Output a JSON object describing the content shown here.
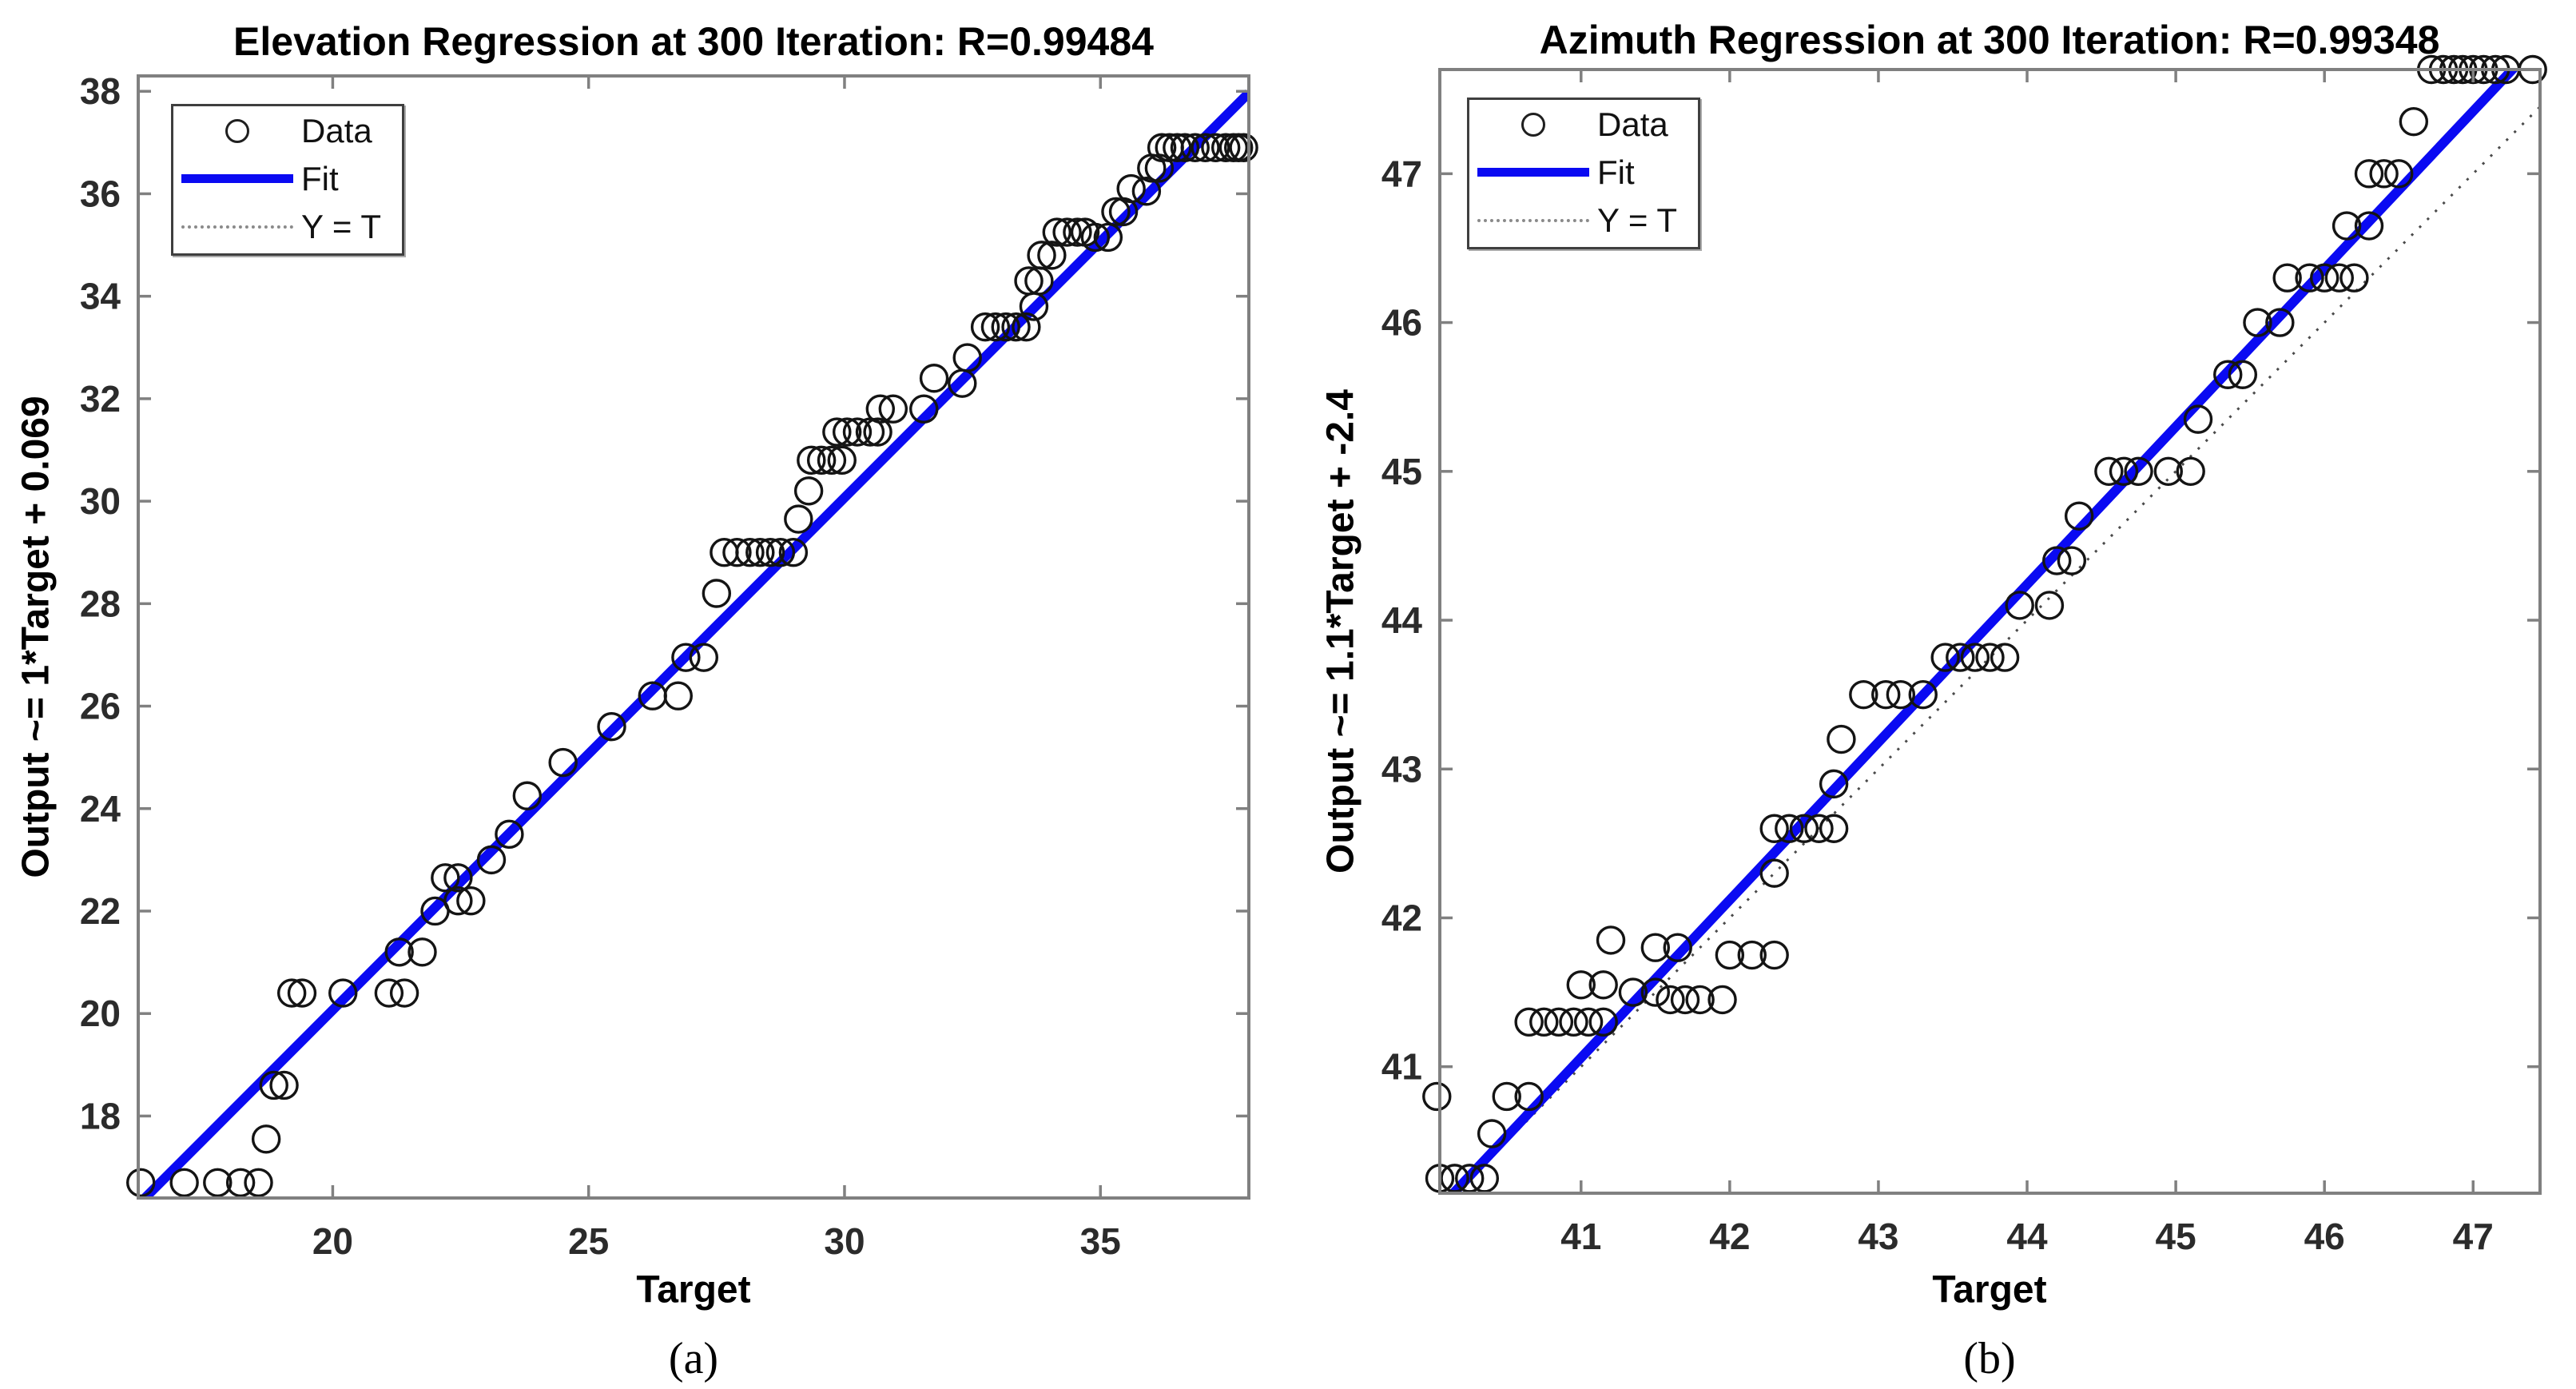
{
  "figure": {
    "background": "#ffffff"
  },
  "style": {
    "fit_color": "#0a0af2",
    "marker_color": "#141414",
    "axis_color": "#808080",
    "identity_color": "#4a4a4a",
    "tick_label_color": "#2b2b2b"
  },
  "chart_data": [
    {
      "type": "scatter",
      "title": "Elevation Regression at 300 Iteration: R=0.99484",
      "xlabel": "Target",
      "ylabel": "Output ~= 1*Target + 0.069",
      "caption": "(a)",
      "r_label": "R=0.99484",
      "xlim": [
        16.2,
        37.9
      ],
      "ylim": [
        16.4,
        38.3
      ],
      "xticks": [
        20,
        25,
        30,
        35
      ],
      "yticks": [
        18,
        20,
        22,
        24,
        26,
        28,
        30,
        32,
        34,
        36,
        38
      ],
      "grid": false,
      "legend": [
        "Data",
        "Fit",
        "Y = T"
      ],
      "legend_position": "top-left",
      "fit": {
        "slope": 1.0,
        "intercept": 0.069
      },
      "identity": {
        "label": "Y = T"
      },
      "points": [
        [
          16.25,
          16.7
        ],
        [
          17.1,
          16.7
        ],
        [
          17.75,
          16.7
        ],
        [
          18.2,
          16.7
        ],
        [
          18.55,
          16.7
        ],
        [
          18.7,
          17.55
        ],
        [
          18.85,
          18.6
        ],
        [
          19.05,
          18.6
        ],
        [
          19.2,
          20.4
        ],
        [
          19.4,
          20.4
        ],
        [
          20.2,
          20.4
        ],
        [
          21.1,
          20.4
        ],
        [
          21.4,
          20.4
        ],
        [
          21.3,
          21.2
        ],
        [
          21.75,
          21.2
        ],
        [
          22.0,
          22.0
        ],
        [
          22.2,
          22.65
        ],
        [
          22.45,
          22.65
        ],
        [
          22.45,
          22.2
        ],
        [
          22.7,
          22.2
        ],
        [
          23.1,
          23.0
        ],
        [
          23.45,
          23.5
        ],
        [
          23.8,
          24.25
        ],
        [
          24.5,
          24.9
        ],
        [
          25.45,
          25.6
        ],
        [
          26.25,
          26.2
        ],
        [
          26.75,
          26.2
        ],
        [
          26.9,
          26.95
        ],
        [
          27.25,
          26.95
        ],
        [
          27.5,
          28.2
        ],
        [
          27.65,
          29.0
        ],
        [
          27.9,
          29.0
        ],
        [
          28.15,
          29.0
        ],
        [
          28.35,
          29.0
        ],
        [
          28.55,
          29.0
        ],
        [
          28.75,
          29.0
        ],
        [
          29.0,
          29.0
        ],
        [
          29.1,
          29.65
        ],
        [
          29.3,
          30.2
        ],
        [
          29.35,
          30.8
        ],
        [
          29.55,
          30.8
        ],
        [
          29.75,
          30.8
        ],
        [
          29.95,
          30.8
        ],
        [
          29.85,
          31.35
        ],
        [
          30.05,
          31.35
        ],
        [
          30.25,
          31.35
        ],
        [
          30.5,
          31.35
        ],
        [
          30.65,
          31.35
        ],
        [
          30.7,
          31.8
        ],
        [
          30.95,
          31.8
        ],
        [
          31.55,
          31.8
        ],
        [
          31.75,
          32.4
        ],
        [
          32.3,
          32.3
        ],
        [
          32.4,
          32.8
        ],
        [
          32.75,
          33.4
        ],
        [
          32.95,
          33.4
        ],
        [
          33.15,
          33.4
        ],
        [
          33.35,
          33.4
        ],
        [
          33.55,
          33.4
        ],
        [
          33.7,
          33.8
        ],
        [
          33.6,
          34.3
        ],
        [
          33.8,
          34.3
        ],
        [
          33.85,
          34.8
        ],
        [
          34.05,
          34.8
        ],
        [
          34.15,
          35.25
        ],
        [
          34.35,
          35.25
        ],
        [
          34.55,
          35.25
        ],
        [
          34.7,
          35.25
        ],
        [
          34.9,
          35.15
        ],
        [
          35.15,
          35.15
        ],
        [
          35.3,
          35.65
        ],
        [
          35.45,
          35.65
        ],
        [
          35.6,
          36.1
        ],
        [
          35.9,
          36.05
        ],
        [
          36.0,
          36.5
        ],
        [
          36.15,
          36.5
        ],
        [
          36.2,
          36.9
        ],
        [
          36.35,
          36.9
        ],
        [
          36.5,
          36.9
        ],
        [
          36.65,
          36.9
        ],
        [
          36.85,
          36.9
        ],
        [
          37.05,
          36.9
        ],
        [
          37.25,
          36.9
        ],
        [
          37.45,
          36.9
        ],
        [
          37.6,
          36.9
        ],
        [
          37.7,
          36.9
        ],
        [
          37.8,
          36.9
        ]
      ]
    },
    {
      "type": "scatter",
      "title": "Azimuth Regression at 300 Iteration: R=0.99348",
      "xlabel": "Target",
      "ylabel": "Output ~= 1.1*Target + -2.4",
      "caption": "(b)",
      "r_label": "R=0.99348",
      "xlim": [
        40.05,
        47.45
      ],
      "ylim": [
        40.15,
        47.7
      ],
      "xticks": [
        41,
        42,
        43,
        44,
        45,
        46,
        47
      ],
      "yticks": [
        41,
        42,
        43,
        44,
        45,
        46,
        47
      ],
      "grid": false,
      "legend": [
        "Data",
        "Fit",
        "Y = T"
      ],
      "legend_position": "top-left",
      "fit": {
        "slope": 1.06,
        "intercept": -2.4
      },
      "identity": {
        "label": "Y = T"
      },
      "points": [
        [
          40.03,
          40.8
        ],
        [
          40.05,
          40.25
        ],
        [
          40.15,
          40.25
        ],
        [
          40.25,
          40.25
        ],
        [
          40.35,
          40.25
        ],
        [
          40.4,
          40.55
        ],
        [
          40.5,
          40.8
        ],
        [
          40.65,
          40.8
        ],
        [
          40.65,
          41.3
        ],
        [
          40.75,
          41.3
        ],
        [
          40.85,
          41.3
        ],
        [
          40.95,
          41.3
        ],
        [
          41.05,
          41.3
        ],
        [
          41.15,
          41.3
        ],
        [
          41.0,
          41.55
        ],
        [
          41.15,
          41.55
        ],
        [
          41.2,
          41.85
        ],
        [
          41.5,
          41.8
        ],
        [
          41.65,
          41.8
        ],
        [
          41.35,
          41.5
        ],
        [
          41.5,
          41.5
        ],
        [
          41.6,
          41.45
        ],
        [
          41.7,
          41.45
        ],
        [
          41.8,
          41.45
        ],
        [
          41.95,
          41.45
        ],
        [
          42.0,
          41.75
        ],
        [
          42.15,
          41.75
        ],
        [
          42.3,
          41.75
        ],
        [
          42.3,
          42.3
        ],
        [
          42.3,
          42.6
        ],
        [
          42.4,
          42.6
        ],
        [
          42.5,
          42.6
        ],
        [
          42.6,
          42.6
        ],
        [
          42.7,
          42.6
        ],
        [
          42.7,
          42.9
        ],
        [
          42.75,
          43.2
        ],
        [
          42.9,
          43.5
        ],
        [
          43.05,
          43.5
        ],
        [
          43.15,
          43.5
        ],
        [
          43.3,
          43.5
        ],
        [
          43.45,
          43.75
        ],
        [
          43.55,
          43.75
        ],
        [
          43.65,
          43.75
        ],
        [
          43.75,
          43.75
        ],
        [
          43.85,
          43.75
        ],
        [
          43.95,
          44.1
        ],
        [
          44.15,
          44.1
        ],
        [
          44.2,
          44.4
        ],
        [
          44.3,
          44.4
        ],
        [
          44.35,
          44.7
        ],
        [
          44.55,
          45.0
        ],
        [
          44.65,
          45.0
        ],
        [
          44.75,
          45.0
        ],
        [
          44.95,
          45.0
        ],
        [
          45.1,
          45.0
        ],
        [
          45.15,
          45.35
        ],
        [
          45.35,
          45.65
        ],
        [
          45.45,
          45.65
        ],
        [
          45.55,
          46.0
        ],
        [
          45.7,
          46.0
        ],
        [
          45.75,
          46.3
        ],
        [
          45.9,
          46.3
        ],
        [
          46.0,
          46.3
        ],
        [
          46.1,
          46.3
        ],
        [
          46.2,
          46.3
        ],
        [
          46.15,
          46.65
        ],
        [
          46.3,
          46.65
        ],
        [
          46.3,
          47.0
        ],
        [
          46.4,
          47.0
        ],
        [
          46.5,
          47.0
        ],
        [
          46.6,
          47.35
        ],
        [
          46.72,
          47.7
        ],
        [
          46.8,
          47.7
        ],
        [
          46.87,
          47.7
        ],
        [
          46.93,
          47.7
        ],
        [
          47.0,
          47.7
        ],
        [
          47.07,
          47.7
        ],
        [
          47.15,
          47.7
        ],
        [
          47.22,
          47.7
        ],
        [
          47.4,
          47.7
        ]
      ]
    }
  ]
}
